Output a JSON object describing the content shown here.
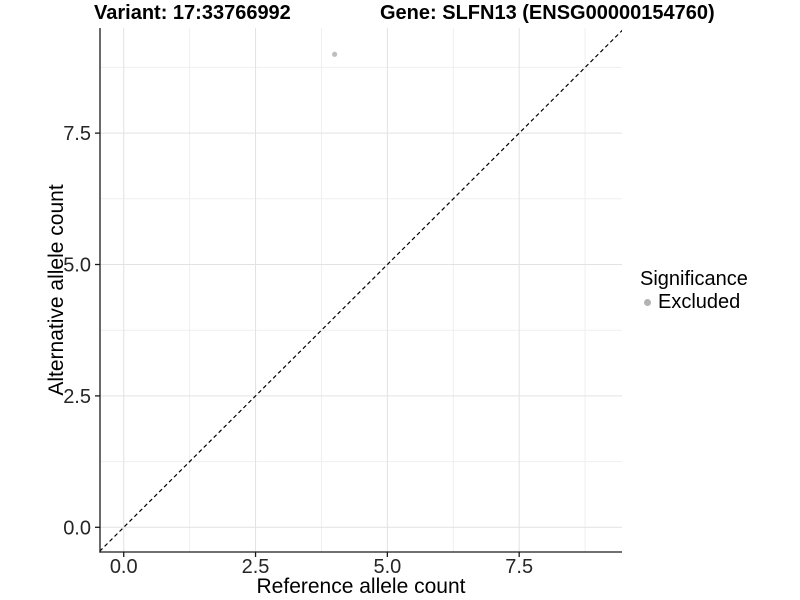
{
  "header": {
    "variant_title": "Variant: 17:33766992",
    "gene_title": "Gene: SLFN13 (ENSG00000154760)"
  },
  "chart_data": {
    "type": "scatter",
    "title_left": "Variant: 17:33766992",
    "title_right": "Gene: SLFN13 (ENSG00000154760)",
    "xlabel": "Reference allele count",
    "ylabel": "Alternative allele count",
    "xlim": [
      -0.45,
      9.45
    ],
    "ylim": [
      -0.47,
      9.5
    ],
    "x_major_ticks": [
      0,
      2.5,
      5,
      7.5
    ],
    "x_tick_labels": [
      "0.0",
      "2.5",
      "5.0",
      "7.5"
    ],
    "y_major_ticks": [
      0,
      2.5,
      5,
      7.5
    ],
    "y_tick_labels": [
      "0.0",
      "2.5",
      "5.0",
      "7.5"
    ],
    "x_minor_ticks": [
      1.25,
      3.75,
      6.25,
      8.75
    ],
    "y_minor_ticks": [
      1.25,
      3.75,
      6.25,
      8.75
    ],
    "grid": "major+minor",
    "series": [
      {
        "name": "Excluded",
        "color": "#bebebe",
        "marker": "circle",
        "points": [
          [
            4,
            9
          ]
        ]
      }
    ],
    "reference_line": {
      "slope": 1,
      "intercept": 0,
      "style": "dashed",
      "color": "#000000"
    },
    "legend": {
      "title": "Significance",
      "position": "right",
      "items": [
        {
          "label": "Excluded",
          "color": "#b3b3b3"
        }
      ]
    }
  },
  "colors": {
    "background": "#ffffff",
    "grid_major": "#e2e2e2",
    "grid_minor": "#efefef",
    "axis": "#1a1a1a",
    "tick_text": "#262626",
    "title_text": "#000000",
    "point": "#bebebe"
  }
}
